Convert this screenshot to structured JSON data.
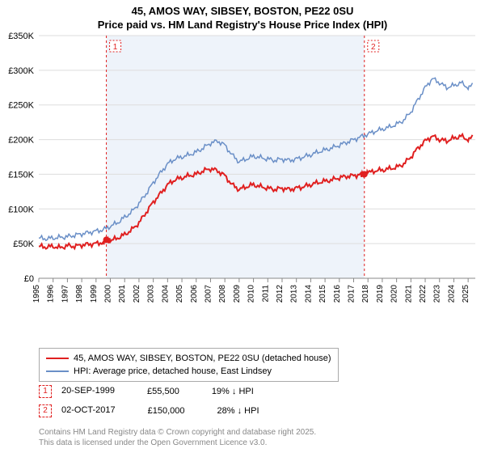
{
  "title": {
    "line1": "45, AMOS WAY, SIBSEY, BOSTON, PE22 0SU",
    "line2": "Price paid vs. HM Land Registry's House Price Index (HPI)",
    "fontsize": 13,
    "fontweight": "bold",
    "color": "#000000"
  },
  "chart": {
    "type": "line",
    "background_color": "#ffffff",
    "shaded_region": {
      "x_start": 1999.72,
      "x_end": 2017.75,
      "fill": "#eef3fa"
    },
    "xlim": [
      1995,
      2025.5
    ],
    "ylim": [
      0,
      350000
    ],
    "ytick_step": 50000,
    "ytick_labels": [
      "£0",
      "£50K",
      "£100K",
      "£150K",
      "£200K",
      "£250K",
      "£300K",
      "£350K"
    ],
    "xticks": [
      1995,
      1996,
      1997,
      1998,
      1999,
      2000,
      2001,
      2002,
      2003,
      2004,
      2005,
      2006,
      2007,
      2008,
      2009,
      2010,
      2011,
      2012,
      2013,
      2014,
      2015,
      2016,
      2017,
      2018,
      2019,
      2020,
      2021,
      2022,
      2023,
      2024,
      2025
    ],
    "xtick_fontsize": 10,
    "ytick_fontsize": 11,
    "grid_color": "#dddddd",
    "axis_color": "#888888",
    "series": [
      {
        "name": "price_paid",
        "label": "45, AMOS WAY, SIBSEY, BOSTON, PE22 0SU (detached house)",
        "color": "#e02020",
        "line_width": 2,
        "data": [
          [
            1995,
            46000
          ],
          [
            1995.5,
            45000
          ],
          [
            1996,
            46000
          ],
          [
            1996.5,
            44000
          ],
          [
            1997,
            47000
          ],
          [
            1997.5,
            46000
          ],
          [
            1998,
            48000
          ],
          [
            1998.5,
            49000
          ],
          [
            1999,
            50000
          ],
          [
            1999.5,
            52000
          ],
          [
            1999.72,
            55500
          ],
          [
            2000,
            54000
          ],
          [
            2000.5,
            58000
          ],
          [
            2001,
            63000
          ],
          [
            2001.5,
            70000
          ],
          [
            2002,
            80000
          ],
          [
            2002.5,
            95000
          ],
          [
            2003,
            110000
          ],
          [
            2003.5,
            122000
          ],
          [
            2004,
            135000
          ],
          [
            2004.5,
            142000
          ],
          [
            2005,
            145000
          ],
          [
            2005.5,
            148000
          ],
          [
            2006,
            150000
          ],
          [
            2006.5,
            155000
          ],
          [
            2007,
            158000
          ],
          [
            2007.5,
            155000
          ],
          [
            2008,
            148000
          ],
          [
            2008.5,
            135000
          ],
          [
            2009,
            128000
          ],
          [
            2009.5,
            132000
          ],
          [
            2010,
            135000
          ],
          [
            2010.5,
            132000
          ],
          [
            2011,
            130000
          ],
          [
            2011.5,
            128000
          ],
          [
            2012,
            130000
          ],
          [
            2012.5,
            128000
          ],
          [
            2013,
            130000
          ],
          [
            2013.5,
            132000
          ],
          [
            2014,
            135000
          ],
          [
            2014.5,
            138000
          ],
          [
            2015,
            140000
          ],
          [
            2015.5,
            142000
          ],
          [
            2016,
            145000
          ],
          [
            2016.5,
            147000
          ],
          [
            2017,
            148000
          ],
          [
            2017.5,
            150000
          ],
          [
            2017.75,
            150000
          ],
          [
            2018,
            152000
          ],
          [
            2018.5,
            155000
          ],
          [
            2019,
            156000
          ],
          [
            2019.5,
            158000
          ],
          [
            2020,
            160000
          ],
          [
            2020.5,
            165000
          ],
          [
            2021,
            175000
          ],
          [
            2021.5,
            188000
          ],
          [
            2022,
            198000
          ],
          [
            2022.5,
            205000
          ],
          [
            2023,
            200000
          ],
          [
            2023.5,
            198000
          ],
          [
            2024,
            202000
          ],
          [
            2024.5,
            205000
          ],
          [
            2025,
            200000
          ],
          [
            2025.3,
            205000
          ]
        ]
      },
      {
        "name": "hpi",
        "label": "HPI: Average price, detached house, East Lindsey",
        "color": "#6a8fc7",
        "line_width": 1.5,
        "data": [
          [
            1995,
            58000
          ],
          [
            1995.5,
            57000
          ],
          [
            1996,
            58000
          ],
          [
            1996.5,
            59000
          ],
          [
            1997,
            60000
          ],
          [
            1997.5,
            62000
          ],
          [
            1998,
            64000
          ],
          [
            1998.5,
            66000
          ],
          [
            1999,
            68000
          ],
          [
            1999.5,
            70000
          ],
          [
            2000,
            75000
          ],
          [
            2000.5,
            80000
          ],
          [
            2001,
            88000
          ],
          [
            2001.5,
            96000
          ],
          [
            2002,
            108000
          ],
          [
            2002.5,
            122000
          ],
          [
            2003,
            138000
          ],
          [
            2003.5,
            152000
          ],
          [
            2004,
            165000
          ],
          [
            2004.5,
            172000
          ],
          [
            2005,
            175000
          ],
          [
            2005.5,
            178000
          ],
          [
            2006,
            182000
          ],
          [
            2006.5,
            188000
          ],
          [
            2007,
            195000
          ],
          [
            2007.5,
            198000
          ],
          [
            2008,
            192000
          ],
          [
            2008.5,
            178000
          ],
          [
            2009,
            168000
          ],
          [
            2009.5,
            172000
          ],
          [
            2010,
            176000
          ],
          [
            2010.5,
            174000
          ],
          [
            2011,
            172000
          ],
          [
            2011.5,
            170000
          ],
          [
            2012,
            172000
          ],
          [
            2012.5,
            170000
          ],
          [
            2013,
            172000
          ],
          [
            2013.5,
            175000
          ],
          [
            2014,
            178000
          ],
          [
            2014.5,
            182000
          ],
          [
            2015,
            185000
          ],
          [
            2015.5,
            188000
          ],
          [
            2016,
            192000
          ],
          [
            2016.5,
            196000
          ],
          [
            2017,
            200000
          ],
          [
            2017.5,
            204000
          ],
          [
            2018,
            208000
          ],
          [
            2018.5,
            212000
          ],
          [
            2019,
            215000
          ],
          [
            2019.5,
            218000
          ],
          [
            2020,
            222000
          ],
          [
            2020.5,
            228000
          ],
          [
            2021,
            240000
          ],
          [
            2021.5,
            258000
          ],
          [
            2022,
            275000
          ],
          [
            2022.5,
            288000
          ],
          [
            2023,
            282000
          ],
          [
            2023.5,
            275000
          ],
          [
            2024,
            278000
          ],
          [
            2024.5,
            282000
          ],
          [
            2025,
            275000
          ],
          [
            2025.3,
            280000
          ]
        ]
      }
    ],
    "markers": [
      {
        "id": "1",
        "x": 1999.72,
        "y": 55500,
        "box_color": "#e02020",
        "dot_color": "#e02020"
      },
      {
        "id": "2",
        "x": 2017.75,
        "y": 150000,
        "box_color": "#e02020",
        "dot_color": "#e02020"
      }
    ]
  },
  "legend": {
    "border_color": "#aaaaaa",
    "fontsize": 11,
    "entries": [
      {
        "color": "#e02020",
        "label": "45, AMOS WAY, SIBSEY, BOSTON, PE22 0SU (detached house)",
        "width": 2
      },
      {
        "color": "#6a8fc7",
        "label": "HPI: Average price, detached house, East Lindsey",
        "width": 1.5
      }
    ]
  },
  "marker_details": [
    {
      "id": "1",
      "date": "20-SEP-1999",
      "price": "£55,500",
      "diff": "19% ↓ HPI"
    },
    {
      "id": "2",
      "date": "02-OCT-2017",
      "price": "£150,000",
      "diff": "28% ↓ HPI"
    }
  ],
  "footer": {
    "line1": "Contains HM Land Registry data © Crown copyright and database right 2025.",
    "line2": "This data is licensed under the Open Government Licence v3.0.",
    "color": "#888888",
    "fontsize": 10
  }
}
